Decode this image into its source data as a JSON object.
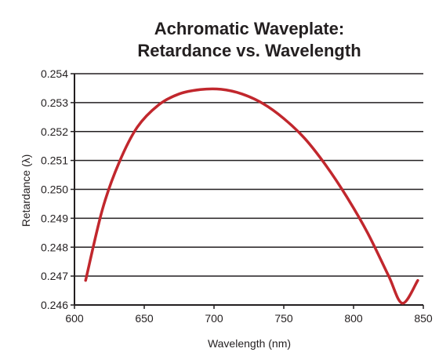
{
  "colors": {
    "curve": "#c1272d",
    "axis": "#231f20",
    "grid": "#231f20",
    "text": "#231f20"
  },
  "chart_data": {
    "type": "line",
    "title": [
      "Achromatic Waveplate:",
      "Retardance vs. Wavelength"
    ],
    "xlabel": "Wavelength (nm)",
    "ylabel": "Retardance (λ)",
    "xlim": [
      600,
      850
    ],
    "ylim": [
      0.246,
      0.254
    ],
    "x_ticks": [
      600,
      650,
      700,
      750,
      800,
      850
    ],
    "x_tick_labels": [
      "600",
      "650",
      "700",
      "750",
      "800",
      "850"
    ],
    "y_ticks": [
      0.246,
      0.247,
      0.248,
      0.249,
      0.25,
      0.251,
      0.252,
      0.253,
      0.254
    ],
    "y_tick_labels": [
      "0.246",
      "0.247",
      "0.248",
      "0.249",
      "0.250",
      "0.251",
      "0.252",
      "0.253",
      "0.254"
    ],
    "grid": "horizontal",
    "legend": "none",
    "series": [
      {
        "x": [
          608,
          620,
          632,
          645,
          660,
          675,
          690,
          705,
          720,
          735,
          750,
          765,
          780,
          795,
          810,
          825,
          835,
          846
        ],
        "y": [
          0.24685,
          0.2493,
          0.25093,
          0.25215,
          0.25291,
          0.2533,
          0.25345,
          0.25346,
          0.2533,
          0.25297,
          0.25245,
          0.25176,
          0.25084,
          0.24975,
          0.2485,
          0.24702,
          0.24606,
          0.24685
        ]
      }
    ]
  }
}
